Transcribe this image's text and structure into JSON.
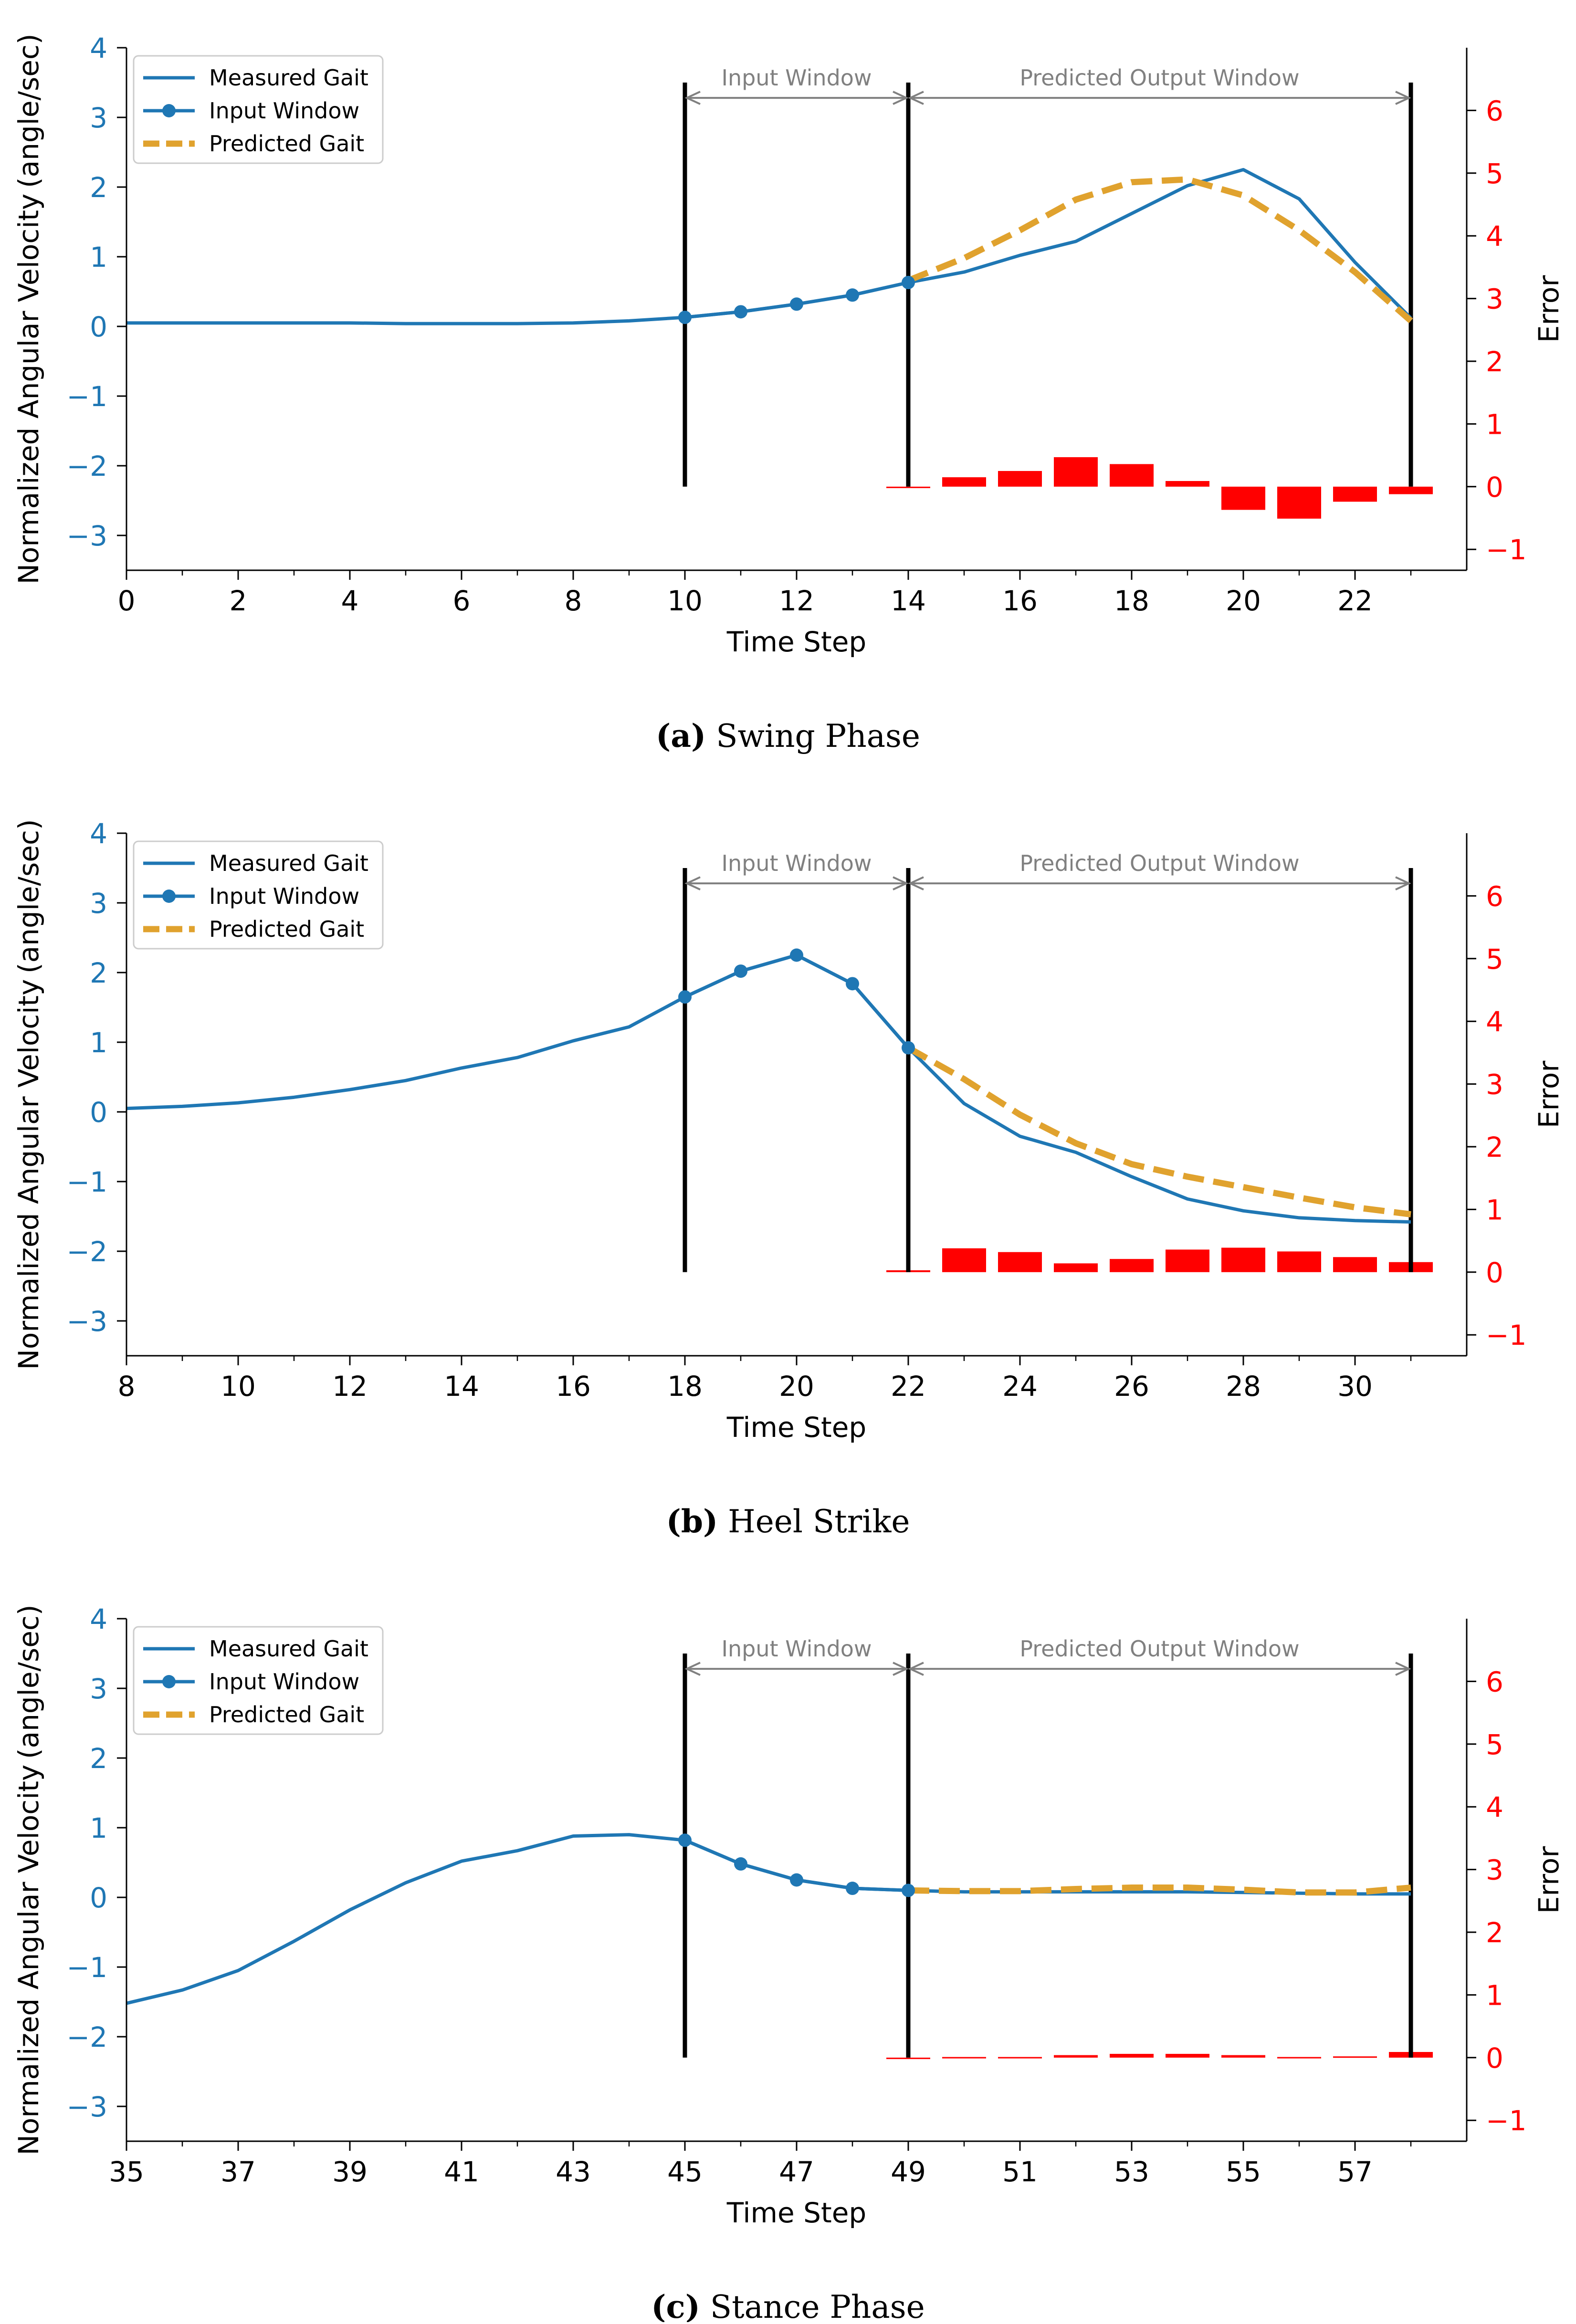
{
  "chart_data": [
    {
      "type": "line",
      "caption_label": "(a)",
      "caption_text": " Swing Phase",
      "xlabel": "Time Step",
      "ylabel": "Normalized Angular Velocity (angle/sec)",
      "y2label": "Error",
      "xlim": [
        0,
        24
      ],
      "ylim": [
        -3.5,
        4
      ],
      "y2lim": [
        -1.3333,
        7
      ],
      "xticks": [
        0,
        2,
        4,
        6,
        8,
        10,
        12,
        14,
        16,
        18,
        20,
        22
      ],
      "xtick_labels": [
        "0",
        "2",
        "4",
        "6",
        "8",
        "10",
        "12",
        "14",
        "16",
        "18",
        "20",
        "22"
      ],
      "xminor": [
        1,
        3,
        5,
        7,
        9,
        11,
        13,
        15,
        17,
        19,
        21,
        23
      ],
      "yticks": [
        -3,
        -2,
        -1,
        0,
        1,
        2,
        3,
        4
      ],
      "ytick_labels": [
        "−3",
        "−2",
        "−1",
        "0",
        "1",
        "2",
        "3",
        "4"
      ],
      "y2ticks": [
        -1,
        0,
        1,
        2,
        3,
        4,
        5,
        6
      ],
      "y2tick_labels": [
        "−1",
        "0",
        "1",
        "2",
        "3",
        "4",
        "5",
        "6"
      ],
      "vlines": [
        10,
        14,
        23
      ],
      "vline_ymin": -2.3,
      "vline_ymax": 3.5,
      "annotations": [
        {
          "text": "Input Window",
          "x1": 10,
          "x2": 14
        },
        {
          "text": "Predicted Output Window",
          "x1": 14,
          "x2": 23
        }
      ],
      "annotation_y": 3.28,
      "legend": [
        "Measured Gait",
        "Input Window",
        "Predicted Gait"
      ],
      "legend_loc": "upper left",
      "series": [
        {
          "name": "Measured Gait",
          "x": [
            0,
            1,
            2,
            3,
            4,
            5,
            6,
            7,
            8,
            9,
            10,
            11,
            12,
            13,
            14,
            15,
            16,
            17,
            18,
            19,
            20,
            21,
            22,
            23
          ],
          "y": [
            0.05,
            0.05,
            0.05,
            0.05,
            0.05,
            0.04,
            0.04,
            0.04,
            0.05,
            0.08,
            0.13,
            0.21,
            0.32,
            0.45,
            0.63,
            0.78,
            1.02,
            1.22,
            1.62,
            2.02,
            2.25,
            1.83,
            0.92,
            0.12
          ]
        },
        {
          "name": "Input Window",
          "x": [
            10,
            11,
            12,
            13,
            14
          ],
          "y": [
            0.13,
            0.21,
            0.32,
            0.45,
            0.63
          ]
        },
        {
          "name": "Predicted Gait",
          "x": [
            14,
            15,
            16,
            17,
            18,
            19,
            20,
            21,
            22,
            23
          ],
          "y": [
            0.66,
            0.98,
            1.38,
            1.82,
            2.07,
            2.11,
            1.88,
            1.38,
            0.78,
            0.08
          ]
        },
        {
          "name": "Error",
          "x": [
            14,
            15,
            16,
            17,
            18,
            19,
            20,
            21,
            22,
            23
          ],
          "y": [
            0.0,
            0.15,
            0.25,
            0.47,
            0.36,
            0.09,
            -0.37,
            -0.51,
            -0.24,
            -0.12
          ]
        }
      ]
    },
    {
      "type": "line",
      "caption_label": "(b)",
      "caption_text": " Heel Strike",
      "xlabel": "Time Step",
      "ylabel": "Normalized Angular Velocity (angle/sec)",
      "y2label": "Error",
      "xlim": [
        8,
        32
      ],
      "ylim": [
        -3.5,
        4
      ],
      "y2lim": [
        -1.3333,
        7
      ],
      "xticks": [
        8,
        10,
        12,
        14,
        16,
        18,
        20,
        22,
        24,
        26,
        28,
        30
      ],
      "xtick_labels": [
        "8",
        "10",
        "12",
        "14",
        "16",
        "18",
        "20",
        "22",
        "24",
        "26",
        "28",
        "30"
      ],
      "xminor": [
        9,
        11,
        13,
        15,
        17,
        19,
        21,
        23,
        25,
        27,
        29,
        31
      ],
      "yticks": [
        -3,
        -2,
        -1,
        0,
        1,
        2,
        3,
        4
      ],
      "ytick_labels": [
        "−3",
        "−2",
        "−1",
        "0",
        "1",
        "2",
        "3",
        "4"
      ],
      "y2ticks": [
        -1,
        0,
        1,
        2,
        3,
        4,
        5,
        6
      ],
      "y2tick_labels": [
        "−1",
        "0",
        "1",
        "2",
        "3",
        "4",
        "5",
        "6"
      ],
      "vlines": [
        18,
        22,
        31
      ],
      "vline_ymin": -2.3,
      "vline_ymax": 3.5,
      "annotations": [
        {
          "text": "Input Window",
          "x1": 18,
          "x2": 22
        },
        {
          "text": "Predicted Output Window",
          "x1": 22,
          "x2": 31
        }
      ],
      "annotation_y": 3.28,
      "legend": [
        "Measured Gait",
        "Input Window",
        "Predicted Gait"
      ],
      "legend_loc": "upper left",
      "series": [
        {
          "name": "Measured Gait",
          "x": [
            8,
            9,
            10,
            11,
            12,
            13,
            14,
            15,
            16,
            17,
            18,
            19,
            20,
            21,
            22,
            23,
            24,
            25,
            26,
            27,
            28,
            29,
            30,
            31
          ],
          "y": [
            0.05,
            0.08,
            0.13,
            0.21,
            0.32,
            0.45,
            0.63,
            0.78,
            1.02,
            1.22,
            1.65,
            2.02,
            2.25,
            1.84,
            0.92,
            0.12,
            -0.35,
            -0.58,
            -0.93,
            -1.25,
            -1.42,
            -1.52,
            -1.56,
            -1.58
          ]
        },
        {
          "name": "Input Window",
          "x": [
            18,
            19,
            20,
            21,
            22
          ],
          "y": [
            1.65,
            2.02,
            2.25,
            1.84,
            0.92
          ]
        },
        {
          "name": "Predicted Gait",
          "x": [
            22,
            23,
            24,
            25,
            26,
            27,
            28,
            29,
            30,
            31
          ],
          "y": [
            0.92,
            0.47,
            -0.04,
            -0.45,
            -0.75,
            -0.93,
            -1.08,
            -1.23,
            -1.37,
            -1.47
          ]
        },
        {
          "name": "Error",
          "x": [
            22,
            23,
            24,
            25,
            26,
            27,
            28,
            29,
            30,
            31
          ],
          "y": [
            0.03,
            0.38,
            0.32,
            0.14,
            0.21,
            0.36,
            0.39,
            0.33,
            0.24,
            0.16
          ]
        }
      ]
    },
    {
      "type": "line",
      "caption_label": "(c)",
      "caption_text": " Stance Phase",
      "xlabel": "Time Step",
      "ylabel": "Normalized Angular Velocity (angle/sec)",
      "y2label": "Error",
      "xlim": [
        35,
        59
      ],
      "ylim": [
        -3.5,
        4
      ],
      "y2lim": [
        -1.3333,
        7
      ],
      "xticks": [
        35,
        37,
        39,
        41,
        43,
        45,
        47,
        49,
        51,
        53,
        55,
        57
      ],
      "xtick_labels": [
        "35",
        "37",
        "39",
        "41",
        "43",
        "45",
        "47",
        "49",
        "51",
        "53",
        "55",
        "57"
      ],
      "xminor": [
        36,
        38,
        40,
        42,
        44,
        46,
        48,
        50,
        52,
        54,
        56,
        58
      ],
      "yticks": [
        -3,
        -2,
        -1,
        0,
        1,
        2,
        3,
        4
      ],
      "ytick_labels": [
        "−3",
        "−2",
        "−1",
        "0",
        "1",
        "2",
        "3",
        "4"
      ],
      "y2ticks": [
        -1,
        0,
        1,
        2,
        3,
        4,
        5,
        6
      ],
      "y2tick_labels": [
        "−1",
        "0",
        "1",
        "2",
        "3",
        "4",
        "5",
        "6"
      ],
      "vlines": [
        45,
        49,
        58
      ],
      "vline_ymin": -2.3,
      "vline_ymax": 3.5,
      "annotations": [
        {
          "text": "Input Window",
          "x1": 45,
          "x2": 49
        },
        {
          "text": "Predicted Output Window",
          "x1": 49,
          "x2": 58
        }
      ],
      "annotation_y": 3.28,
      "legend": [
        "Measured Gait",
        "Input Window",
        "Predicted Gait"
      ],
      "legend_loc": "upper left",
      "series": [
        {
          "name": "Measured Gait",
          "x": [
            35,
            36,
            37,
            38,
            39,
            40,
            41,
            42,
            43,
            44,
            45,
            46,
            47,
            48,
            49,
            50,
            51,
            52,
            53,
            54,
            55,
            56,
            57,
            58
          ],
          "y": [
            -1.52,
            -1.33,
            -1.05,
            -0.63,
            -0.18,
            0.21,
            0.52,
            0.67,
            0.88,
            0.9,
            0.82,
            0.48,
            0.25,
            0.13,
            0.1,
            0.08,
            0.08,
            0.08,
            0.08,
            0.08,
            0.07,
            0.06,
            0.05,
            0.05
          ]
        },
        {
          "name": "Input Window",
          "x": [
            45,
            46,
            47,
            48,
            49
          ],
          "y": [
            0.82,
            0.48,
            0.25,
            0.13,
            0.1
          ]
        },
        {
          "name": "Predicted Gait",
          "x": [
            49,
            50,
            51,
            52,
            53,
            54,
            55,
            56,
            57,
            58
          ],
          "y": [
            0.1,
            0.09,
            0.09,
            0.12,
            0.14,
            0.14,
            0.11,
            0.07,
            0.07,
            0.14
          ]
        },
        {
          "name": "Error",
          "x": [
            49,
            50,
            51,
            52,
            53,
            54,
            55,
            56,
            57,
            58
          ],
          "y": [
            0.0,
            0.01,
            0.01,
            0.04,
            0.06,
            0.06,
            0.04,
            0.01,
            0.02,
            0.09
          ]
        }
      ]
    }
  ]
}
